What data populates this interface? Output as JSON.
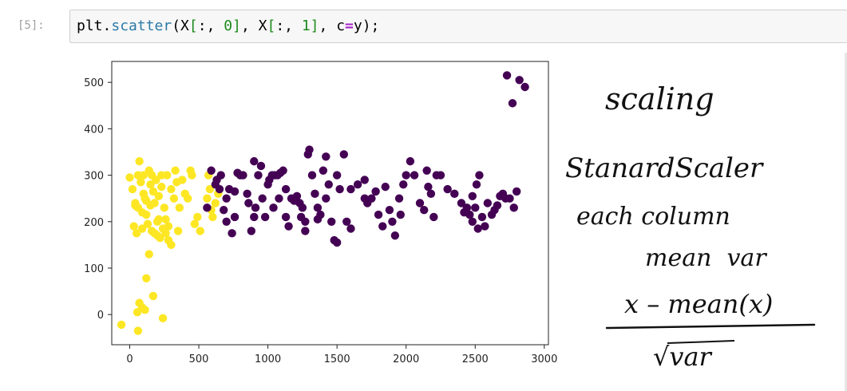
{
  "notebook": {
    "prompt": "[5]:",
    "code": {
      "obj": "plt.",
      "fn": "scatter",
      "open": "(X",
      "br1": "[",
      "colon1": ":, ",
      "n0": "0",
      "br2": "]",
      "mid": ", X",
      "br3": "[",
      "colon2": ":, ",
      "n1": "1",
      "br4": "]",
      "sep": ", c",
      "eq": "=",
      "end": "y);"
    }
  },
  "notes": {
    "line1": "scaling",
    "line2": "StanardScaler",
    "line3": "each column",
    "line4": "mean  var",
    "numerator": "x – mean(x)",
    "denominator": "√var"
  },
  "chart_data": {
    "type": "scatter",
    "title": "",
    "xlabel": "",
    "ylabel": "",
    "xlim": [
      -130,
      3030
    ],
    "ylim": [
      -65,
      545
    ],
    "xticks": [
      0,
      500,
      1000,
      1500,
      2000,
      2500,
      3000
    ],
    "yticks": [
      0,
      100,
      200,
      300,
      400,
      500
    ],
    "grid": false,
    "colors": {
      "class0": "#440154",
      "class1": "#fde725"
    },
    "series": [
      {
        "class": 1,
        "points": [
          [
            -60,
            -22
          ],
          [
            60,
            -35
          ],
          [
            70,
            25
          ],
          [
            90,
            15
          ],
          [
            110,
            10
          ],
          [
            55,
            5
          ],
          [
            170,
            40
          ],
          [
            240,
            -8
          ],
          [
            120,
            78
          ],
          [
            140,
            130
          ],
          [
            0,
            295
          ],
          [
            20,
            270
          ],
          [
            40,
            235
          ],
          [
            60,
            300
          ],
          [
            70,
            330
          ],
          [
            80,
            285
          ],
          [
            100,
            300
          ],
          [
            110,
            250
          ],
          [
            120,
            215
          ],
          [
            140,
            310
          ],
          [
            150,
            280
          ],
          [
            160,
            300
          ],
          [
            170,
            265
          ],
          [
            180,
            240
          ],
          [
            190,
            290
          ],
          [
            200,
            200
          ],
          [
            210,
            255
          ],
          [
            230,
            275
          ],
          [
            250,
            230
          ],
          [
            270,
            300
          ],
          [
            280,
            190
          ],
          [
            300,
            270
          ],
          [
            320,
            250
          ],
          [
            340,
            285
          ],
          [
            360,
            230
          ],
          [
            380,
            290
          ],
          [
            400,
            260
          ],
          [
            420,
            250
          ],
          [
            450,
            300
          ],
          [
            470,
            195
          ],
          [
            490,
            210
          ],
          [
            510,
            180
          ],
          [
            30,
            190
          ],
          [
            50,
            175
          ],
          [
            90,
            185
          ],
          [
            130,
            195
          ],
          [
            160,
            180
          ],
          [
            180,
            175
          ],
          [
            200,
            170
          ],
          [
            220,
            165
          ],
          [
            240,
            185
          ],
          [
            260,
            205
          ],
          [
            280,
            160
          ],
          [
            300,
            150
          ],
          [
            350,
            180
          ],
          [
            60,
            230
          ],
          [
            90,
            220
          ],
          [
            120,
            245
          ],
          [
            210,
            205
          ],
          [
            230,
            300
          ],
          [
            560,
            250
          ],
          [
            580,
            270
          ],
          [
            600,
            210
          ],
          [
            620,
            240
          ],
          [
            570,
            300
          ],
          [
            590,
            225
          ],
          [
            640,
            260
          ],
          [
            440,
            310
          ],
          [
            330,
            310
          ],
          [
            100,
            260
          ],
          [
            260,
            175
          ],
          [
            150,
            235
          ],
          [
            40,
            240
          ]
        ]
      },
      {
        "class": 0,
        "points": [
          [
            560,
            230
          ],
          [
            590,
            310
          ],
          [
            620,
            280
          ],
          [
            650,
            270
          ],
          [
            660,
            300
          ],
          [
            680,
            225
          ],
          [
            700,
            250
          ],
          [
            720,
            270
          ],
          [
            740,
            175
          ],
          [
            760,
            210
          ],
          [
            780,
            305
          ],
          [
            800,
            300
          ],
          [
            820,
            300
          ],
          [
            850,
            260
          ],
          [
            860,
            240
          ],
          [
            880,
            180
          ],
          [
            900,
            210
          ],
          [
            910,
            230
          ],
          [
            930,
            300
          ],
          [
            950,
            320
          ],
          [
            960,
            250
          ],
          [
            980,
            210
          ],
          [
            1000,
            280
          ],
          [
            1010,
            290
          ],
          [
            1030,
            300
          ],
          [
            1050,
            300
          ],
          [
            1070,
            300
          ],
          [
            1090,
            305
          ],
          [
            1110,
            310
          ],
          [
            1130,
            270
          ],
          [
            1150,
            190
          ],
          [
            1170,
            250
          ],
          [
            1190,
            245
          ],
          [
            1210,
            255
          ],
          [
            1230,
            240
          ],
          [
            1250,
            230
          ],
          [
            1270,
            200
          ],
          [
            1290,
            345
          ],
          [
            1300,
            355
          ],
          [
            1320,
            300
          ],
          [
            1340,
            260
          ],
          [
            1360,
            230
          ],
          [
            1380,
            215
          ],
          [
            1400,
            310
          ],
          [
            1420,
            340
          ],
          [
            1440,
            280
          ],
          [
            1460,
            200
          ],
          [
            1480,
            160
          ],
          [
            1500,
            155
          ],
          [
            1520,
            270
          ],
          [
            1550,
            345
          ],
          [
            1570,
            200
          ],
          [
            1600,
            185
          ],
          [
            1650,
            280
          ],
          [
            1700,
            290
          ],
          [
            1720,
            240
          ],
          [
            1750,
            250
          ],
          [
            1780,
            265
          ],
          [
            1800,
            215
          ],
          [
            1830,
            190
          ],
          [
            1850,
            275
          ],
          [
            1880,
            225
          ],
          [
            1900,
            200
          ],
          [
            1920,
            170
          ],
          [
            1950,
            250
          ],
          [
            1980,
            280
          ],
          [
            2000,
            300
          ],
          [
            2030,
            330
          ],
          [
            2060,
            300
          ],
          [
            2100,
            240
          ],
          [
            2130,
            225
          ],
          [
            2150,
            310
          ],
          [
            2180,
            260
          ],
          [
            2220,
            300
          ],
          [
            2250,
            300
          ],
          [
            2300,
            270
          ],
          [
            2350,
            260
          ],
          [
            2400,
            240
          ],
          [
            2420,
            220
          ],
          [
            2460,
            215
          ],
          [
            2480,
            200
          ],
          [
            2500,
            230
          ],
          [
            2510,
            280
          ],
          [
            2530,
            300
          ],
          [
            2550,
            210
          ],
          [
            2570,
            190
          ],
          [
            2590,
            240
          ],
          [
            2620,
            215
          ],
          [
            2640,
            225
          ],
          [
            2660,
            235
          ],
          [
            2680,
            255
          ],
          [
            2700,
            260
          ],
          [
            2720,
            250
          ],
          [
            2750,
            250
          ],
          [
            2780,
            230
          ],
          [
            2800,
            265
          ],
          [
            2730,
            515
          ],
          [
            2770,
            455
          ],
          [
            2820,
            505
          ],
          [
            2860,
            490
          ],
          [
            630,
            290
          ],
          [
            700,
            200
          ],
          [
            760,
            265
          ],
          [
            1040,
            230
          ],
          [
            1080,
            250
          ],
          [
            1130,
            210
          ],
          [
            1240,
            210
          ],
          [
            1270,
            180
          ],
          [
            1420,
            250
          ],
          [
            1700,
            250
          ],
          [
            2200,
            210
          ],
          [
            2440,
            230
          ],
          [
            2520,
            185
          ],
          [
            2480,
            255
          ],
          [
            1600,
            270
          ],
          [
            900,
            330
          ],
          [
            1500,
            300
          ],
          [
            1960,
            215
          ],
          [
            2160,
            275
          ],
          [
            1360,
            205
          ]
        ]
      }
    ]
  }
}
